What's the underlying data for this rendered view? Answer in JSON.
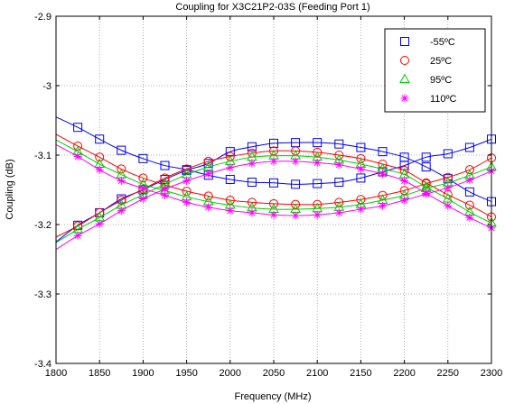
{
  "chart_data": {
    "type": "line",
    "title": "Coupling for X3C21P2-03S (Feeding Port 1)",
    "xlabel": "Frequency (MHz)",
    "ylabel": "Coupling (dB)",
    "xlim": [
      1800,
      2300
    ],
    "ylim": [
      -3.4,
      -2.9
    ],
    "xticks": [
      1800,
      1850,
      1900,
      1950,
      2000,
      2050,
      2100,
      2150,
      2200,
      2250,
      2300
    ],
    "yticks": [
      -3.4,
      -3.3,
      -3.2,
      -3.1,
      -3.0,
      -2.9
    ],
    "xtick_labels": [
      "1800",
      "1850",
      "1900",
      "1950",
      "2000",
      "2050",
      "2100",
      "2150",
      "2200",
      "2250",
      "2300"
    ],
    "ytick_labels": [
      "-3.4",
      "-3.3",
      "-3.2",
      "-3.1",
      "-3",
      "-2.9"
    ],
    "grid": true,
    "legend_position": "top-right",
    "marker_x": [
      1825,
      1850,
      1875,
      1900,
      1925,
      1950,
      1975,
      2000,
      2025,
      2050,
      2075,
      2100,
      2125,
      2150,
      2175,
      2200,
      2225,
      2250,
      2275,
      2300
    ],
    "series": [
      {
        "name": "-55ºC",
        "color": "#0000ff",
        "marker": "square",
        "curves": [
          {
            "x": [
              1800,
              1825,
              1850,
              1875,
              1900,
              1925,
              1950,
              1975,
              2000,
              2025,
              2050,
              2075,
              2100,
              2125,
              2150,
              2175,
              2200,
              2225,
              2250,
              2275,
              2300
            ],
            "y": [
              -3.045,
              -3.06,
              -3.077,
              -3.093,
              -3.105,
              -3.115,
              -3.121,
              -3.129,
              -3.135,
              -3.139,
              -3.14,
              -3.142,
              -3.141,
              -3.139,
              -3.133,
              -3.124,
              -3.115,
              -3.103,
              -3.098,
              -3.089,
              -3.077
            ],
            "markers": true
          },
          {
            "x": [
              1800,
              1825,
              1850,
              1875,
              1900,
              1925,
              1950,
              1975,
              2000,
              2025,
              2050,
              2075,
              2100,
              2125,
              2150,
              2175,
              2200,
              2225,
              2250,
              2275,
              2300
            ],
            "y": [
              -3.225,
              -3.201,
              -3.183,
              -3.163,
              -3.15,
              -3.135,
              -3.122,
              -3.112,
              -3.095,
              -3.088,
              -3.083,
              -3.082,
              -3.082,
              -3.084,
              -3.089,
              -3.095,
              -3.103,
              -3.117,
              -3.134,
              -3.153,
              -3.167
            ],
            "markers": true
          }
        ]
      },
      {
        "name": "25ºC",
        "color": "#ff0000",
        "marker": "circle",
        "curves": [
          {
            "x": [
              1800,
              1825,
              1850,
              1875,
              1900,
              1925,
              1950,
              1975,
              2000,
              2025,
              2050,
              2075,
              2100,
              2125,
              2150,
              2175,
              2200,
              2225,
              2250,
              2275,
              2300
            ],
            "y": [
              -3.07,
              -3.087,
              -3.103,
              -3.12,
              -3.133,
              -3.143,
              -3.152,
              -3.159,
              -3.165,
              -3.168,
              -3.17,
              -3.171,
              -3.171,
              -3.168,
              -3.164,
              -3.158,
              -3.151,
              -3.141,
              -3.132,
              -3.121,
              -3.104
            ],
            "markers": true
          },
          {
            "x": [
              1800,
              1825,
              1850,
              1875,
              1900,
              1925,
              1950,
              1975,
              2000,
              2025,
              2050,
              2075,
              2100,
              2125,
              2150,
              2175,
              2200,
              2225,
              2250,
              2275,
              2300
            ],
            "y": [
              -3.218,
              -3.202,
              -3.183,
              -3.165,
              -3.149,
              -3.133,
              -3.12,
              -3.109,
              -3.102,
              -3.097,
              -3.094,
              -3.094,
              -3.096,
              -3.1,
              -3.105,
              -3.113,
              -3.122,
              -3.14,
              -3.157,
              -3.172,
              -3.189
            ],
            "markers": true
          }
        ]
      },
      {
        "name": "95ºC",
        "color": "#00cc00",
        "marker": "triangle",
        "curves": [
          {
            "x": [
              1800,
              1825,
              1850,
              1875,
              1900,
              1925,
              1950,
              1975,
              2000,
              2025,
              2050,
              2075,
              2100,
              2125,
              2150,
              2175,
              2200,
              2225,
              2250,
              2275,
              2300
            ],
            "y": [
              -3.078,
              -3.095,
              -3.113,
              -3.128,
              -3.142,
              -3.151,
              -3.16,
              -3.167,
              -3.172,
              -3.176,
              -3.178,
              -3.178,
              -3.177,
              -3.175,
              -3.171,
              -3.165,
              -3.158,
              -3.148,
              -3.14,
              -3.129,
              -3.117
            ],
            "markers": true
          },
          {
            "x": [
              1800,
              1825,
              1850,
              1875,
              1900,
              1925,
              1950,
              1975,
              2000,
              2025,
              2050,
              2075,
              2100,
              2125,
              2150,
              2175,
              2200,
              2225,
              2250,
              2275,
              2300
            ],
            "y": [
              -3.226,
              -3.207,
              -3.19,
              -3.172,
              -3.157,
              -3.142,
              -3.128,
              -3.117,
              -3.109,
              -3.103,
              -3.101,
              -3.101,
              -3.103,
              -3.107,
              -3.113,
              -3.12,
              -3.128,
              -3.146,
              -3.163,
              -3.182,
              -3.198
            ],
            "markers": true
          }
        ]
      },
      {
        "name": "110ºC",
        "color": "#ff00ff",
        "marker": "star",
        "curves": [
          {
            "x": [
              1800,
              1825,
              1850,
              1875,
              1900,
              1925,
              1950,
              1975,
              2000,
              2025,
              2050,
              2075,
              2100,
              2125,
              2150,
              2175,
              2200,
              2225,
              2250,
              2275,
              2300
            ],
            "y": [
              -3.085,
              -3.102,
              -3.121,
              -3.137,
              -3.148,
              -3.158,
              -3.168,
              -3.175,
              -3.18,
              -3.183,
              -3.186,
              -3.187,
              -3.186,
              -3.183,
              -3.178,
              -3.173,
              -3.165,
              -3.156,
              -3.147,
              -3.136,
              -3.123
            ],
            "markers": true
          },
          {
            "x": [
              1800,
              1825,
              1850,
              1875,
              1900,
              1925,
              1950,
              1975,
              2000,
              2025,
              2050,
              2075,
              2100,
              2125,
              2150,
              2175,
              2200,
              2225,
              2250,
              2275,
              2300
            ],
            "y": [
              -3.236,
              -3.216,
              -3.199,
              -3.18,
              -3.163,
              -3.149,
              -3.137,
              -3.127,
              -3.118,
              -3.112,
              -3.109,
              -3.109,
              -3.111,
              -3.114,
              -3.12,
              -3.127,
              -3.137,
              -3.155,
              -3.173,
              -3.19,
              -3.205
            ],
            "markers": true
          }
        ]
      }
    ]
  }
}
